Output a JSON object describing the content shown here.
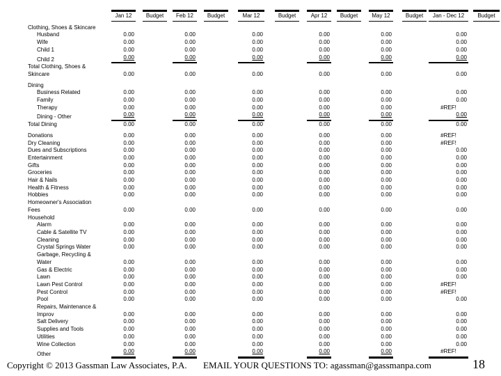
{
  "colors": {
    "text": "#000000",
    "background": "#ffffff"
  },
  "table": {
    "columns": [
      {
        "label": "Jan 12",
        "type": "month"
      },
      {
        "label": "Budget",
        "type": "budget"
      },
      {
        "label": "Feb 12",
        "type": "month"
      },
      {
        "label": "Budget",
        "type": "budget"
      },
      {
        "label": "Mar 12",
        "type": "month"
      },
      {
        "label": "Budget",
        "type": "budget"
      },
      {
        "label": "Apr 12",
        "type": "month"
      },
      {
        "label": "Budget",
        "type": "budget"
      },
      {
        "label": "May 12",
        "type": "month"
      },
      {
        "label": "Budget",
        "type": "budget"
      },
      {
        "label": "Jan - Dec 12",
        "type": "month"
      },
      {
        "label": "Budget",
        "type": "budget"
      }
    ],
    "rows": [
      {
        "type": "section",
        "indent": 0,
        "label": "Clothing, Shoes & Skincare"
      },
      {
        "type": "item",
        "indent": 1,
        "label": "Husband",
        "values": [
          "0.00",
          "0.00",
          "0.00",
          "0.00",
          "0.00",
          "0.00"
        ]
      },
      {
        "type": "item",
        "indent": 1,
        "label": "Wife",
        "values": [
          "0.00",
          "0.00",
          "0.00",
          "0.00",
          "0.00",
          "0.00"
        ]
      },
      {
        "type": "item",
        "indent": 1,
        "label": "Child 1",
        "values": [
          "0.00",
          "0.00",
          "0.00",
          "0.00",
          "0.00",
          "0.00"
        ]
      },
      {
        "type": "item",
        "indent": 1,
        "label": "Child 2",
        "rule": "single",
        "values": [
          "0.00",
          "0.00",
          "0.00",
          "0.00",
          "0.00",
          "0.00"
        ]
      },
      {
        "type": "total",
        "indent": 0,
        "label": "Total Clothing, Shoes &\nSkincare",
        "values": [
          "0.00",
          "0.00",
          "0.00",
          "0.00",
          "0.00",
          "0.00"
        ]
      },
      {
        "type": "section",
        "indent": 0,
        "label": "Dining",
        "space_before": true
      },
      {
        "type": "item",
        "indent": 1,
        "label": "Business Related",
        "values": [
          "0.00",
          "0.00",
          "0.00",
          "0.00",
          "0.00",
          "0.00"
        ]
      },
      {
        "type": "item",
        "indent": 1,
        "label": "Family",
        "values": [
          "0.00",
          "0.00",
          "0.00",
          "0.00",
          "0.00",
          "0.00"
        ]
      },
      {
        "type": "item",
        "indent": 1,
        "label": "Therapy",
        "values": [
          "0.00",
          "0.00",
          "0.00",
          "0.00",
          "0.00",
          "#REF!"
        ]
      },
      {
        "type": "item",
        "indent": 1,
        "label": "Dining - Other",
        "rule": "single",
        "values": [
          "0.00",
          "0.00",
          "0.00",
          "0.00",
          "0.00",
          "0.00"
        ]
      },
      {
        "type": "total",
        "indent": 0,
        "label": "Total Dining",
        "values": [
          "0.00",
          "0.00",
          "0.00",
          "0.00",
          "0.00",
          "0.00"
        ]
      },
      {
        "type": "item",
        "indent": 0,
        "label": "Donations",
        "space_before": true,
        "values": [
          "0.00",
          "0.00",
          "0.00",
          "0.00",
          "0.00",
          "#REF!"
        ]
      },
      {
        "type": "item",
        "indent": 0,
        "label": "Dry Cleaning",
        "values": [
          "0.00",
          "0.00",
          "0.00",
          "0.00",
          "0.00",
          "#REF!"
        ]
      },
      {
        "type": "item",
        "indent": 0,
        "label": "Dues and Subscriptions",
        "values": [
          "0.00",
          "0.00",
          "0.00",
          "0.00",
          "0.00",
          "0.00"
        ]
      },
      {
        "type": "item",
        "indent": 0,
        "label": "Entertainment",
        "values": [
          "0.00",
          "0.00",
          "0.00",
          "0.00",
          "0.00",
          "0.00"
        ]
      },
      {
        "type": "item",
        "indent": 0,
        "label": "Gifts",
        "values": [
          "0.00",
          "0.00",
          "0.00",
          "0.00",
          "0.00",
          "0.00"
        ]
      },
      {
        "type": "item",
        "indent": 0,
        "label": "Groceries",
        "values": [
          "0.00",
          "0.00",
          "0.00",
          "0.00",
          "0.00",
          "0.00"
        ]
      },
      {
        "type": "item",
        "indent": 0,
        "label": "Hair & Nails",
        "values": [
          "0.00",
          "0.00",
          "0.00",
          "0.00",
          "0.00",
          "0.00"
        ]
      },
      {
        "type": "item",
        "indent": 0,
        "label": "Health & Fitness",
        "values": [
          "0.00",
          "0.00",
          "0.00",
          "0.00",
          "0.00",
          "0.00"
        ]
      },
      {
        "type": "item",
        "indent": 0,
        "label": "Hobbies",
        "values": [
          "0.00",
          "0.00",
          "0.00",
          "0.00",
          "0.00",
          "0.00"
        ]
      },
      {
        "type": "item",
        "indent": 0,
        "label": "Homeowner's Association\nFees",
        "values": [
          "0.00",
          "0.00",
          "0.00",
          "0.00",
          "0.00",
          "0.00"
        ]
      },
      {
        "type": "section",
        "indent": 0,
        "label": "Household"
      },
      {
        "type": "item",
        "indent": 1,
        "label": "Alarm",
        "values": [
          "0.00",
          "0.00",
          "0.00",
          "0.00",
          "0.00",
          "0.00"
        ]
      },
      {
        "type": "item",
        "indent": 1,
        "label": "Cable & Satellite TV",
        "values": [
          "0.00",
          "0.00",
          "0.00",
          "0.00",
          "0.00",
          "0.00"
        ]
      },
      {
        "type": "item",
        "indent": 1,
        "label": "Cleaning",
        "values": [
          "0.00",
          "0.00",
          "0.00",
          "0.00",
          "0.00",
          "0.00"
        ]
      },
      {
        "type": "item",
        "indent": 1,
        "label": "Crystal Springs Water",
        "values": [
          "0.00",
          "0.00",
          "0.00",
          "0.00",
          "0.00",
          "0.00"
        ]
      },
      {
        "type": "item",
        "indent": 1,
        "label": "Garbage, Recycling &\nWater",
        "values": [
          "0.00",
          "0.00",
          "0.00",
          "0.00",
          "0.00",
          "0.00"
        ]
      },
      {
        "type": "item",
        "indent": 1,
        "label": "Gas & Electric",
        "values": [
          "0.00",
          "0.00",
          "0.00",
          "0.00",
          "0.00",
          "0.00"
        ]
      },
      {
        "type": "item",
        "indent": 1,
        "label": "Lawn",
        "values": [
          "0.00",
          "0.00",
          "0.00",
          "0.00",
          "0.00",
          "0.00"
        ]
      },
      {
        "type": "item",
        "indent": 1,
        "label": "Lawn Pest Control",
        "values": [
          "0.00",
          "0.00",
          "0.00",
          "0.00",
          "0.00",
          "#REF!"
        ]
      },
      {
        "type": "item",
        "indent": 1,
        "label": "Pest Control",
        "values": [
          "0.00",
          "0.00",
          "0.00",
          "0.00",
          "0.00",
          "#REF!"
        ]
      },
      {
        "type": "item",
        "indent": 1,
        "label": "Pool",
        "values": [
          "0.00",
          "0.00",
          "0.00",
          "0.00",
          "0.00",
          "0.00"
        ]
      },
      {
        "type": "item",
        "indent": 1,
        "label": "Repairs, Maintenance &\nImprov",
        "values": [
          "0.00",
          "0.00",
          "0.00",
          "0.00",
          "0.00",
          "0.00"
        ]
      },
      {
        "type": "item",
        "indent": 1,
        "label": "Salt Delivery",
        "values": [
          "0.00",
          "0.00",
          "0.00",
          "0.00",
          "0.00",
          "0.00"
        ]
      },
      {
        "type": "item",
        "indent": 1,
        "label": "Supplies and Tools",
        "values": [
          "0.00",
          "0.00",
          "0.00",
          "0.00",
          "0.00",
          "0.00"
        ]
      },
      {
        "type": "item",
        "indent": 1,
        "label": "Utilities",
        "values": [
          "0.00",
          "0.00",
          "0.00",
          "0.00",
          "0.00",
          "0.00"
        ]
      },
      {
        "type": "item",
        "indent": 1,
        "label": "Wine Collection",
        "values": [
          "0.00",
          "0.00",
          "0.00",
          "0.00",
          "0.00",
          "0.00"
        ]
      },
      {
        "type": "item",
        "indent": 1,
        "label": "Other",
        "rule": "thick",
        "values": [
          "0.00",
          "0.00",
          "0.00",
          "0.00",
          "0.00",
          "#REF!"
        ]
      }
    ]
  },
  "footer": {
    "copyright": "Copyright © 2013 Gassman Law Associates, P.A.",
    "email": "EMAIL YOUR QUESTIONS TO: agassman@gassmanpa.com",
    "page_number": "18"
  }
}
